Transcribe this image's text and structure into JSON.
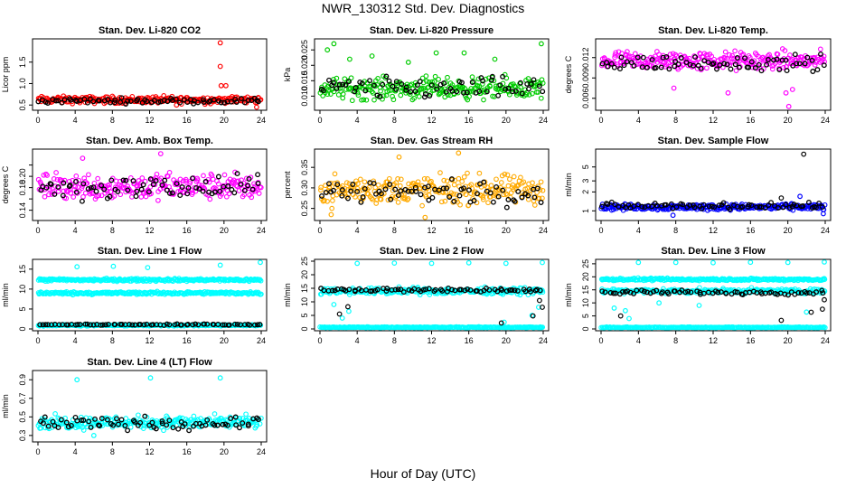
{
  "figure": {
    "title": "NWR_130312  Std. Dev. Diagnostics",
    "xlabel": "Hour of Day (UTC)",
    "colors": {
      "reference": "#000000",
      "axis": "#000000"
    }
  },
  "chart_data": [
    {
      "type": "scatter",
      "title": "Stan. Dev. Li-820 CO2",
      "ylabel": "Licor ppm",
      "color": "#ff0000",
      "x": [
        0,
        4,
        8,
        12,
        16,
        20,
        24
      ],
      "xlim": [
        0,
        24
      ],
      "ylim": [
        0.42,
        2.0
      ],
      "yticks": [
        0.5,
        1.0,
        1.5
      ],
      "ytick_labels": [
        "0.5",
        "1.0",
        "1.5"
      ],
      "series": [
        {
          "name": "data",
          "color": "#ff0000",
          "bands": [
            {
              "center": 0.62,
              "spread": 0.07
            }
          ],
          "points": [
            [
              19.6,
              1.95
            ],
            [
              19.6,
              1.4
            ],
            [
              19.7,
              0.95
            ],
            [
              20.2,
              0.95
            ],
            [
              23.5,
              0.45
            ],
            [
              14.9,
              0.5
            ]
          ]
        },
        {
          "name": "reference",
          "color": "#000000",
          "bands": [
            {
              "center": 0.6,
              "spread": 0.05
            }
          ]
        }
      ]
    },
    {
      "type": "scatter",
      "title": "Stan. Dev. Li-820 Pressure",
      "ylabel": "kPa",
      "color": "#00cc00",
      "xlim": [
        0,
        24
      ],
      "ylim": [
        0.006,
        0.028
      ],
      "yticks": [
        0.01,
        0.015,
        0.02,
        0.025
      ],
      "ytick_labels": [
        "0.010",
        "0.015",
        "0.020",
        "0.025"
      ],
      "series": [
        {
          "name": "data",
          "color": "#00cc00",
          "bands": [
            {
              "center": 0.0125,
              "spread": 0.003
            }
          ],
          "points": [
            [
              1.5,
              0.027
            ],
            [
              0.8,
              0.025
            ],
            [
              3.2,
              0.022
            ],
            [
              5.6,
              0.023
            ],
            [
              12.5,
              0.024
            ],
            [
              15.5,
              0.024
            ],
            [
              23.8,
              0.027
            ],
            [
              9.5,
              0.021
            ],
            [
              18.8,
              0.022
            ]
          ]
        },
        {
          "name": "reference",
          "color": "#000000",
          "bands": [
            {
              "center": 0.0125,
              "spread": 0.003
            }
          ]
        }
      ]
    },
    {
      "type": "scatter",
      "title": "Stan. Dev. Li-820 Temp.",
      "ylabel": "degrees C",
      "color": "#ff00ff",
      "xlim": [
        0,
        24
      ],
      "ylim": [
        0.0045,
        0.0145
      ],
      "yticks": [
        0.006,
        0.009,
        0.012
      ],
      "ytick_labels": [
        "0.006",
        "0.009",
        "0.012"
      ],
      "series": [
        {
          "name": "data",
          "color": "#ff00ff",
          "bands": [
            {
              "center": 0.0115,
              "spread": 0.0012
            }
          ],
          "points": [
            [
              20.1,
              0.0048
            ],
            [
              19.8,
              0.0068
            ],
            [
              20.5,
              0.0073
            ],
            [
              7.8,
              0.0075
            ],
            [
              13.6,
              0.0068
            ]
          ]
        },
        {
          "name": "reference",
          "color": "#000000",
          "bands": [
            {
              "center": 0.0112,
              "spread": 0.001
            }
          ]
        }
      ]
    },
    {
      "type": "scatter",
      "title": "Stan. Dev. Amb. Box Temp.",
      "ylabel": "degrees C",
      "color": "#ff00ff",
      "xlim": [
        0,
        24
      ],
      "ylim": [
        0.125,
        0.245
      ],
      "yticks": [
        0.14,
        0.16,
        0.18,
        0.2,
        0.22
      ],
      "ytick_labels": [
        "0.14",
        "",
        "0.18",
        "0.20",
        ""
      ],
      "series": [
        {
          "name": "data",
          "color": "#ff00ff",
          "bands": [
            {
              "center": 0.182,
              "spread": 0.02
            }
          ],
          "points": [
            [
              13.2,
              0.24
            ],
            [
              4.8,
              0.232
            ]
          ]
        },
        {
          "name": "reference",
          "color": "#000000",
          "bands": [
            {
              "center": 0.18,
              "spread": 0.018
            }
          ]
        }
      ]
    },
    {
      "type": "scatter",
      "title": "Stan. Dev. Gas Stream RH",
      "ylabel": "percent",
      "color": "#ffaa00",
      "xlim": [
        0,
        24
      ],
      "ylim": [
        0.225,
        0.39
      ],
      "yticks": [
        0.25,
        0.3,
        0.35
      ],
      "ytick_labels": [
        "0.25",
        "0.30",
        "0.35"
      ],
      "series": [
        {
          "name": "data",
          "color": "#ffaa00",
          "bands": [
            {
              "center": 0.295,
              "spread": 0.03
            }
          ],
          "points": [
            [
              14.9,
              0.385
            ],
            [
              8.5,
              0.375
            ],
            [
              11.3,
              0.228
            ],
            [
              1.2,
              0.235
            ]
          ]
        },
        {
          "name": "reference",
          "color": "#000000",
          "bands": [
            {
              "center": 0.29,
              "spread": 0.025
            }
          ]
        }
      ]
    },
    {
      "type": "scatter",
      "title": "Stan. Dev. Sample Flow",
      "ylabel": "ml/min",
      "color": "#0000ff",
      "xlim": [
        0,
        24
      ],
      "ylim": [
        0.75,
        9.0
      ],
      "ylog": true,
      "yticks": [
        1,
        2,
        3,
        5
      ],
      "ytick_labels": [
        "1",
        "2",
        "3",
        "5"
      ],
      "series": [
        {
          "name": "data",
          "color": "#0000ff",
          "bands": [
            {
              "center": 1.15,
              "spread": 0.12
            }
          ],
          "points": [
            [
              21.3,
              1.7
            ],
            [
              7.7,
              0.85
            ],
            [
              23.8,
              0.9
            ]
          ]
        },
        {
          "name": "reference",
          "color": "#000000",
          "bands": [
            {
              "center": 1.2,
              "spread": 0.12
            }
          ],
          "points": [
            [
              21.7,
              8.0
            ],
            [
              19.3,
              1.6
            ]
          ]
        }
      ]
    },
    {
      "type": "scatter",
      "title": "Stan. Dev. Line 1 Flow",
      "ylabel": "ml/min",
      "color": "#00ffff",
      "xlim": [
        0,
        24
      ],
      "ylim": [
        0.0,
        17.0
      ],
      "yticks": [
        0,
        5,
        10,
        15
      ],
      "ytick_labels": [
        "0",
        "5",
        "10",
        "15"
      ],
      "series": [
        {
          "name": "data",
          "color": "#00ffff",
          "bands": [
            {
              "center": 12.3,
              "spread": 0.3
            },
            {
              "center": 9.0,
              "spread": 0.3
            },
            {
              "center": 0.9,
              "spread": 0.15
            }
          ],
          "points": [
            [
              4.2,
              15.6
            ],
            [
              8.1,
              15.7
            ],
            [
              11.8,
              15.4
            ],
            [
              19.6,
              16.0
            ],
            [
              23.9,
              16.7
            ]
          ]
        },
        {
          "name": "reference",
          "color": "#000000",
          "bands": [
            {
              "center": 1.1,
              "spread": 0.12
            }
          ]
        }
      ]
    },
    {
      "type": "scatter",
      "title": "Stan. Dev. Line 2 Flow",
      "ylabel": "ml/min",
      "color": "#00ffff",
      "xlim": [
        0,
        24
      ],
      "ylim": [
        0.0,
        25.0
      ],
      "yticks": [
        0,
        5,
        10,
        15,
        20,
        25
      ],
      "ytick_labels": [
        "0",
        "5",
        "10",
        "15",
        "20",
        "25"
      ],
      "series": [
        {
          "name": "data",
          "color": "#00ffff",
          "bands": [
            {
              "center": 14.0,
              "spread": 1.0
            },
            {
              "center": 0.6,
              "spread": 0.15
            }
          ],
          "points": [
            [
              4.0,
              24.2
            ],
            [
              8.0,
              24.3
            ],
            [
              12.0,
              24.2
            ],
            [
              16.0,
              24.4
            ],
            [
              20.0,
              24.2
            ],
            [
              23.9,
              24.5
            ],
            [
              1.5,
              9.0
            ],
            [
              3.1,
              6.5
            ],
            [
              2.4,
              4.0
            ],
            [
              22.8,
              5.0
            ],
            [
              19.8,
              2.5
            ],
            [
              23.5,
              8.0
            ]
          ]
        },
        {
          "name": "reference",
          "color": "#000000",
          "bands": [
            {
              "center": 14.3,
              "spread": 0.6
            }
          ],
          "points": [
            [
              2.1,
              5.5
            ],
            [
              3.0,
              8.2
            ],
            [
              19.5,
              2.2
            ],
            [
              23.6,
              10.5
            ],
            [
              23.9,
              8.0
            ],
            [
              22.9,
              4.8
            ]
          ]
        }
      ]
    },
    {
      "type": "scatter",
      "title": "Stan. Dev. Line 3 Flow",
      "ylabel": "ml/min",
      "color": "#00ffff",
      "xlim": [
        0,
        24
      ],
      "ylim": [
        0.0,
        26.0
      ],
      "yticks": [
        0,
        5,
        10,
        15,
        20,
        25
      ],
      "ytick_labels": [
        "0",
        "5",
        "10",
        "15",
        "20",
        "25"
      ],
      "series": [
        {
          "name": "data",
          "color": "#00ffff",
          "bands": [
            {
              "center": 19.0,
              "spread": 0.4
            },
            {
              "center": 14.5,
              "spread": 0.8
            },
            {
              "center": 0.6,
              "spread": 0.15
            }
          ],
          "points": [
            [
              4.0,
              25.5
            ],
            [
              8.0,
              25.5
            ],
            [
              12.0,
              25.4
            ],
            [
              16.0,
              25.6
            ],
            [
              20.0,
              25.5
            ],
            [
              23.9,
              25.7
            ],
            [
              1.4,
              8.0
            ],
            [
              2.6,
              7.0
            ],
            [
              3.0,
              4.0
            ],
            [
              10.5,
              9.0
            ],
            [
              6.2,
              10.0
            ],
            [
              22.0,
              6.5
            ]
          ]
        },
        {
          "name": "reference",
          "color": "#000000",
          "bands": [
            {
              "center": 14.0,
              "spread": 0.7
            }
          ],
          "points": [
            [
              2.1,
              5.0
            ],
            [
              19.3,
              3.3
            ],
            [
              23.7,
              7.6
            ],
            [
              23.9,
              11.2
            ],
            [
              22.5,
              6.4
            ]
          ]
        }
      ]
    },
    {
      "type": "scatter",
      "title": "Stan. Dev. Line 4 (LT) Flow",
      "ylabel": "ml/min",
      "color": "#00ffff",
      "xlim": [
        0,
        24
      ],
      "ylim": [
        0.25,
        0.98
      ],
      "yticks": [
        0.3,
        0.5,
        0.7,
        0.9
      ],
      "ytick_labels": [
        "0.3",
        "0.5",
        "0.7",
        "0.9"
      ],
      "series": [
        {
          "name": "data",
          "color": "#00ffff",
          "bands": [
            {
              "center": 0.44,
              "spread": 0.06
            }
          ],
          "points": [
            [
              4.2,
              0.9
            ],
            [
              12.1,
              0.92
            ],
            [
              19.6,
              0.92
            ],
            [
              6.0,
              0.3
            ]
          ]
        },
        {
          "name": "reference",
          "color": "#000000",
          "bands": [
            {
              "center": 0.43,
              "spread": 0.06
            }
          ]
        }
      ]
    }
  ]
}
